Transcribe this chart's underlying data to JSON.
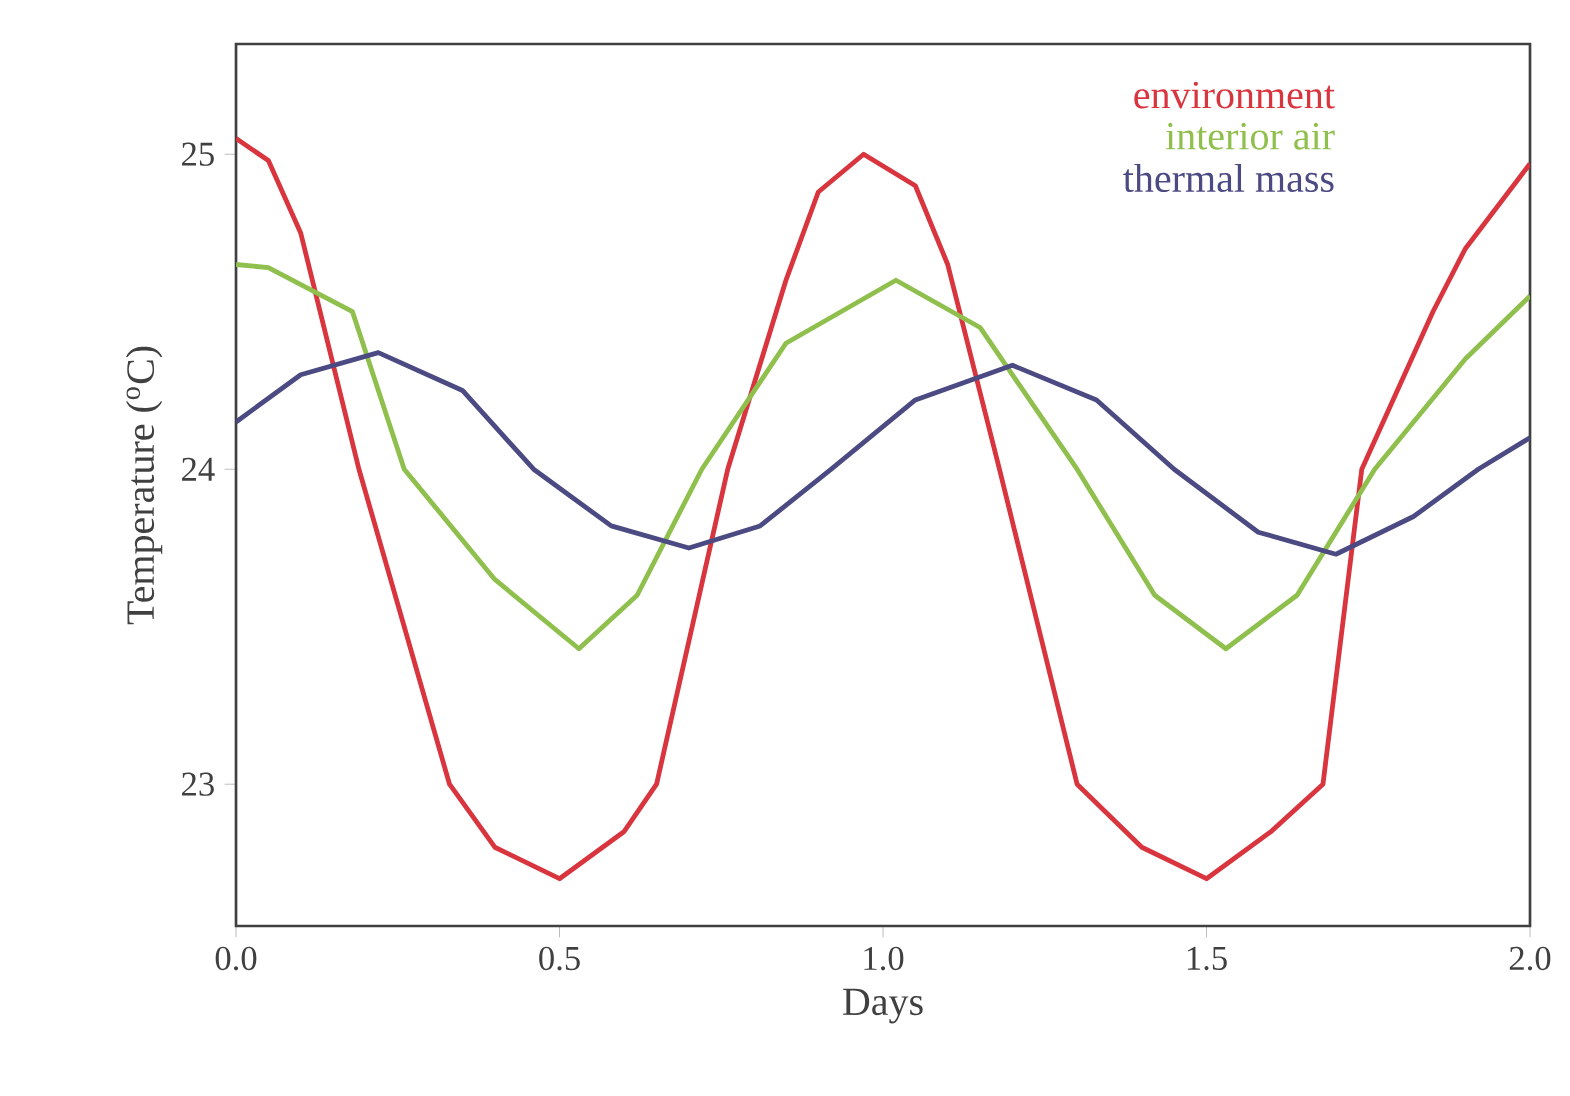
{
  "chart_data": {
    "type": "line",
    "xlabel": "Days",
    "ylabel": "Temperature ($^{o}$C)",
    "xlim": [
      0,
      2
    ],
    "ylim": [
      22.55,
      25.35
    ],
    "xticks": [
      {
        "value": 0,
        "label": "0.0"
      },
      {
        "value": 0.5,
        "label": "0.5"
      },
      {
        "value": 1,
        "label": "1.0"
      },
      {
        "value": 1.5,
        "label": "1.5"
      },
      {
        "value": 2,
        "label": "2.0"
      }
    ],
    "yticks": [
      23,
      24,
      25
    ],
    "grid": false,
    "legend": "top right",
    "marker": "none",
    "line_style": "solid",
    "series": [
      {
        "name": "environment",
        "color": "#d9353e",
        "x": [
          0,
          0.05,
          0.1,
          0.19,
          0.33,
          0.4,
          0.5,
          0.6,
          0.65,
          0.76,
          0.85,
          0.9,
          0.97,
          1.05,
          1.1,
          1.18,
          1.3,
          1.4,
          1.5,
          1.6,
          1.68,
          1.74,
          1.85,
          1.9,
          2.0
        ],
        "values": [
          25.05,
          24.98,
          24.75,
          24.0,
          23.0,
          22.8,
          22.7,
          22.85,
          23.0,
          24.0,
          24.6,
          24.88,
          25.0,
          24.9,
          24.65,
          24.0,
          23.0,
          22.8,
          22.7,
          22.85,
          23.0,
          24.0,
          24.5,
          24.7,
          24.97
        ]
      },
      {
        "name": "interior air",
        "color": "#8fbf4c",
        "x": [
          0,
          0.05,
          0.18,
          0.26,
          0.4,
          0.53,
          0.62,
          0.72,
          0.85,
          1.02,
          1.15,
          1.3,
          1.42,
          1.53,
          1.64,
          1.76,
          1.9,
          2.0
        ],
        "values": [
          24.65,
          24.64,
          24.5,
          24.0,
          23.65,
          23.43,
          23.6,
          24.0,
          24.4,
          24.6,
          24.45,
          24.0,
          23.6,
          23.43,
          23.6,
          24.0,
          24.35,
          24.55
        ]
      },
      {
        "name": "thermal mass",
        "color": "#4c4a82",
        "x": [
          0,
          0.1,
          0.22,
          0.35,
          0.46,
          0.58,
          0.7,
          0.81,
          0.92,
          1.05,
          1.2,
          1.33,
          1.45,
          1.58,
          1.7,
          1.82,
          1.92,
          2.0
        ],
        "values": [
          24.15,
          24.3,
          24.37,
          24.25,
          24.0,
          23.82,
          23.75,
          23.82,
          24.0,
          24.22,
          24.33,
          24.22,
          24.0,
          23.8,
          23.73,
          23.85,
          24.0,
          24.1
        ]
      }
    ]
  }
}
